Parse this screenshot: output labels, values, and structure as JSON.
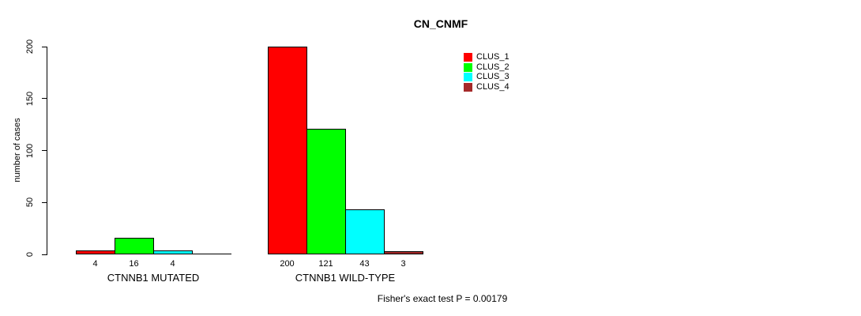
{
  "title": "CN_CNMF",
  "footer": "Fisher's exact test P = 0.00179",
  "chart_data": {
    "type": "bar",
    "title": "CN_CNMF",
    "xlabel": "",
    "ylabel": "number of cases",
    "ylim": [
      0,
      200
    ],
    "yticks": [
      0,
      50,
      100,
      150,
      200
    ],
    "grid": false,
    "legend_position": "top-right",
    "categories": [
      "CTNNB1 MUTATED",
      "CTNNB1 WILD-TYPE"
    ],
    "series": [
      {
        "name": "CLUS_1",
        "color": "#ff0000",
        "values": [
          4,
          200
        ]
      },
      {
        "name": "CLUS_2",
        "color": "#00ff00",
        "values": [
          16,
          121
        ]
      },
      {
        "name": "CLUS_3",
        "color": "#00ffff",
        "values": [
          4,
          43
        ]
      },
      {
        "name": "CLUS_4",
        "color": "#a52a2a",
        "values": [
          0,
          3
        ]
      }
    ],
    "bar_value_labels": {
      "shown": true,
      "hide_zero": true
    },
    "annotation": "Fisher's exact test P = 0.00179"
  }
}
